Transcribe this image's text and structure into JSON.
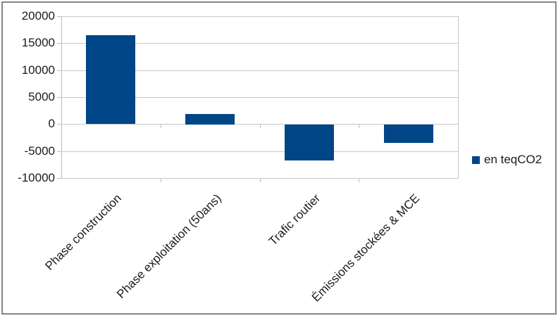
{
  "chart_data": {
    "type": "bar",
    "title": "",
    "categories": [
      "Phase construction",
      "Phase exploitation (50ans)",
      "Trafic routier",
      "Émissions stockées & MCE"
    ],
    "series": [
      {
        "name": "en teqCO2",
        "color": "#004586",
        "values": [
          16500,
          1900,
          -6700,
          -3400
        ]
      }
    ],
    "xlabel": "",
    "ylabel": "",
    "ylim": [
      -10000,
      20000
    ],
    "yticks": [
      20000,
      15000,
      10000,
      5000,
      0,
      -5000,
      -10000
    ],
    "grid": true,
    "legend_position": "right"
  },
  "legend": {
    "label": "en teqCO2"
  },
  "colors": {
    "bar": "#004586",
    "gridline": "#c8c8c8",
    "axis": "#bdbdbd",
    "text": "#1c1c1c",
    "frame_border": "#868686",
    "background": "#ffffff"
  }
}
